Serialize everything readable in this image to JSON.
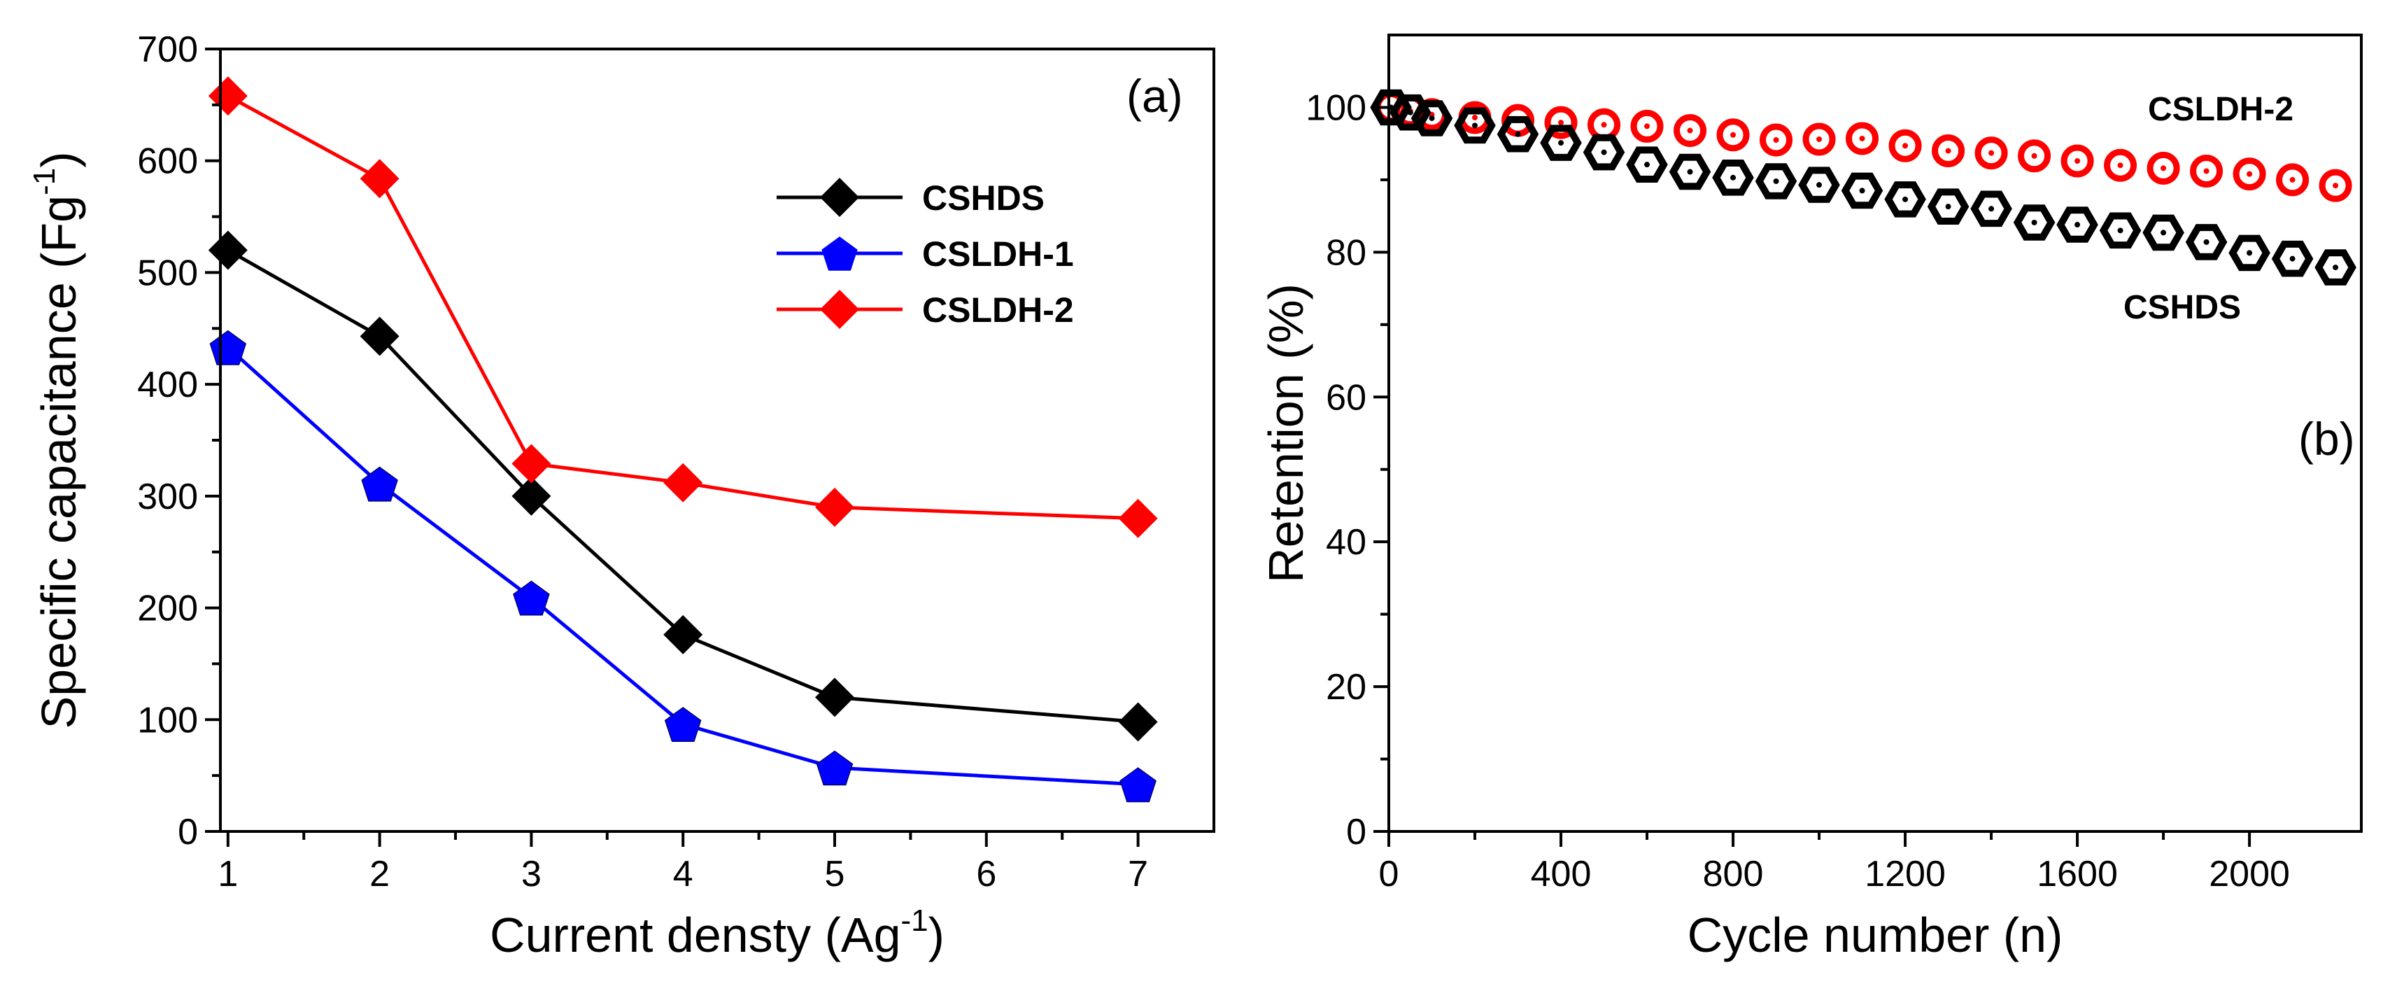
{
  "chart_data": [
    {
      "type": "line",
      "panel_label": "(a)",
      "xlabel": "Current densty (Ag",
      "xlabel_sup": "-1",
      "xlabel_close": ")",
      "ylabel": "Specific capacitance (Fg",
      "ylabel_sup": "-1",
      "ylabel_close": ")",
      "xlim": [
        0.95,
        7.5
      ],
      "ylim": [
        0,
        700
      ],
      "xticks": [
        1,
        2,
        3,
        4,
        5,
        6,
        7
      ],
      "xtick_labels": [
        "1",
        "2",
        "3",
        "4",
        "5",
        "6",
        "7"
      ],
      "yticks": [
        0,
        100,
        200,
        300,
        400,
        500,
        600,
        700
      ],
      "ytick_labels": [
        "0",
        "100",
        "200",
        "300",
        "400",
        "500",
        "600",
        "700"
      ],
      "legend_position": "top-right",
      "series": [
        {
          "name": "CSHDS",
          "color": "#000000",
          "marker": "diamond",
          "x": [
            1,
            2,
            3,
            4,
            5,
            7
          ],
          "values": [
            520,
            443,
            300,
            176,
            120,
            98
          ]
        },
        {
          "name": "CSLDH-1",
          "color": "#0000ff",
          "marker": "pentagon",
          "x": [
            1,
            2,
            3,
            4,
            5,
            7
          ],
          "values": [
            433,
            311,
            209,
            96,
            57,
            42
          ]
        },
        {
          "name": "CSLDH-2",
          "color": "#ff0000",
          "marker": "diamond",
          "x": [
            1,
            2,
            3,
            4,
            5,
            7
          ],
          "values": [
            658,
            584,
            329,
            312,
            290,
            280
          ]
        }
      ]
    },
    {
      "type": "scatter",
      "panel_label": "(b)",
      "xlabel": "Cycle number (n)",
      "ylabel": "Retention  (%)",
      "xlim": [
        0,
        2260
      ],
      "ylim": [
        0,
        110
      ],
      "xticks": [
        0,
        400,
        800,
        1200,
        1600,
        2000
      ],
      "xtick_labels": [
        "0",
        "400",
        "800",
        "1200",
        "1600",
        "2000"
      ],
      "yticks": [
        0,
        20,
        40,
        60,
        80,
        100
      ],
      "ytick_labels": [
        "0",
        "20",
        "40",
        "60",
        "80",
        "100"
      ],
      "series": [
        {
          "name": "CSLDH-2",
          "label": "CSLDH-2",
          "color": "#ff0000",
          "marker": "circle-dot",
          "x": [
            5,
            50,
            100,
            200,
            300,
            400,
            500,
            600,
            700,
            800,
            900,
            1000,
            1100,
            1200,
            1300,
            1400,
            1500,
            1600,
            1700,
            1800,
            1900,
            2000,
            2100,
            2200
          ],
          "values": [
            100,
            99.5,
            99,
            98.6,
            98.2,
            97.9,
            97.6,
            97.4,
            96.8,
            96.2,
            95.5,
            95.6,
            95.7,
            94.7,
            94,
            93.7,
            93.3,
            92.6,
            92,
            91.6,
            91.2,
            90.8,
            90,
            89.2
          ]
        },
        {
          "name": "CSHDS",
          "label": "CSHDS",
          "color": "#000000",
          "marker": "hexagon-dot",
          "x": [
            5,
            50,
            100,
            200,
            300,
            400,
            500,
            600,
            700,
            800,
            900,
            1000,
            1100,
            1200,
            1300,
            1400,
            1500,
            1600,
            1700,
            1800,
            1900,
            2000,
            2100,
            2200
          ],
          "values": [
            100,
            99.3,
            98.5,
            97.5,
            96.3,
            95.1,
            93.8,
            92.1,
            91.1,
            90.3,
            89.8,
            89.3,
            88.5,
            87.3,
            86.3,
            86,
            84.1,
            83.8,
            83,
            82.7,
            81.4,
            79.9,
            79.1,
            77.9
          ]
        }
      ]
    }
  ]
}
